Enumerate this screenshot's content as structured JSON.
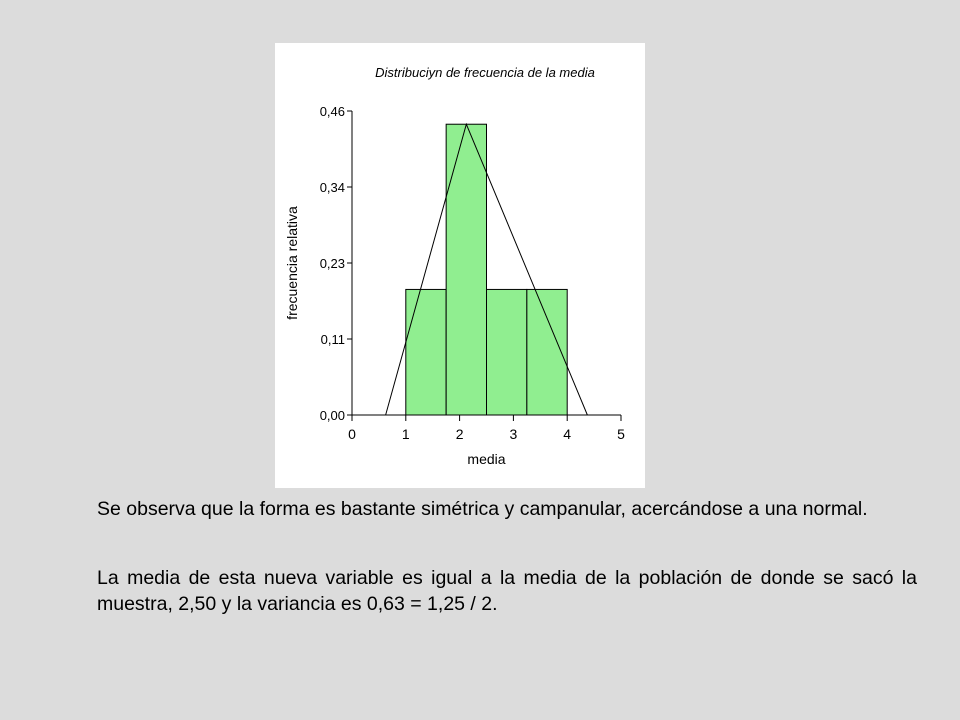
{
  "chart_data": {
    "type": "bar",
    "title": "Distribuciyn de frecuencia de la media",
    "xlabel": "media",
    "ylabel": "frecuencia relativa",
    "xlim": [
      0,
      5
    ],
    "ylim": [
      0,
      0.46
    ],
    "x_ticks": [
      0,
      1,
      2,
      3,
      4,
      5
    ],
    "x_tick_labels": [
      "0",
      "1",
      "2",
      "3",
      "4",
      "5"
    ],
    "y_ticks": [
      0,
      0.115,
      0.23,
      0.345,
      0.46
    ],
    "y_tick_labels": [
      "0,00",
      "0,11",
      "0,23",
      "0,34",
      "0,46"
    ],
    "bins": [
      {
        "x0": 1.0,
        "x1": 1.75,
        "value": 0.19
      },
      {
        "x0": 1.75,
        "x1": 2.5,
        "value": 0.44
      },
      {
        "x0": 2.5,
        "x1": 3.25,
        "value": 0.19
      },
      {
        "x0": 3.25,
        "x1": 4.0,
        "value": 0.19
      }
    ],
    "frequency_polygon": {
      "x": [
        0.625,
        2.125,
        4.375
      ],
      "y": [
        0,
        0.44,
        0
      ]
    },
    "bar_color": "#90ee90",
    "grid": false
  },
  "text": {
    "paragraph_1": "Se observa que la forma es bastante simétrica y campanular, acercándose a una normal.",
    "paragraph_2": "La media de esta nueva variable es igual a la media de la población de donde se sacó la muestra, 2,50 y la variancia es 0,63 = 1,25 / 2."
  }
}
